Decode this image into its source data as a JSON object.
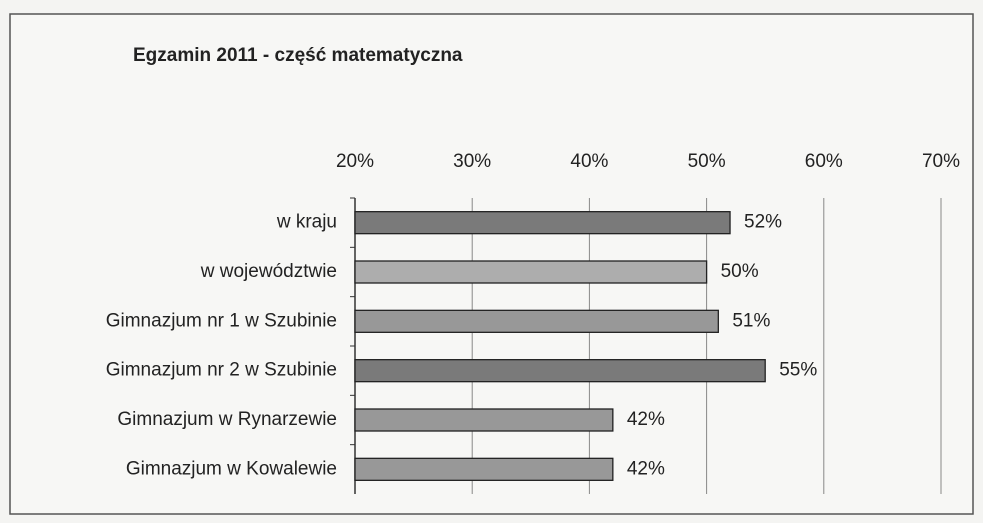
{
  "chart_data": {
    "type": "hbar",
    "title": "Egzamin 2011 - część matematyczna",
    "categories": [
      "w kraju",
      "w województwie",
      "Gimnazjum nr 1 w Szubinie",
      "Gimnazjum nr 2 w Szubinie",
      "Gimnazjum w Rynarzewie",
      "Gimnazjum w Kowalewie"
    ],
    "values": [
      52,
      50,
      51,
      55,
      42,
      42
    ],
    "value_labels": [
      "52%",
      "50%",
      "51%",
      "55%",
      "42%",
      "42%"
    ],
    "colors": [
      "#7a7a7a",
      "#adadad",
      "#989898",
      "#7a7a7a",
      "#989898",
      "#989898"
    ],
    "xlim": [
      20,
      70
    ],
    "xticks": [
      {
        "value": 20,
        "label": "20%"
      },
      {
        "value": 30,
        "label": "30%"
      },
      {
        "value": 40,
        "label": "40%"
      },
      {
        "value": 50,
        "label": "50%"
      },
      {
        "value": 60,
        "label": "60%"
      },
      {
        "value": 70,
        "label": "70%"
      }
    ],
    "grid": true
  }
}
